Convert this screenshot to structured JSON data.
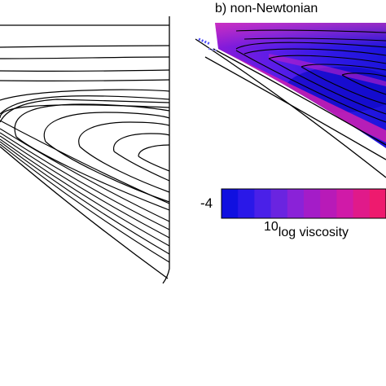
{
  "panel_b": {
    "title": "b) non-Newtonian"
  },
  "colorbar": {
    "min_label": "-4",
    "label_base": "10",
    "label_text": "log viscosity",
    "colors": [
      "#1010e0",
      "#2a18e8",
      "#4a20e8",
      "#6a24e0",
      "#8a22d8",
      "#a41cc8",
      "#b81ab8",
      "#d01aa8",
      "#e01a8a",
      "#ee1a6e"
    ]
  },
  "panels": {
    "left": {
      "name": "streamlines (Newtonian)"
    },
    "right": {
      "name": "viscosity field with streamlines"
    }
  }
}
